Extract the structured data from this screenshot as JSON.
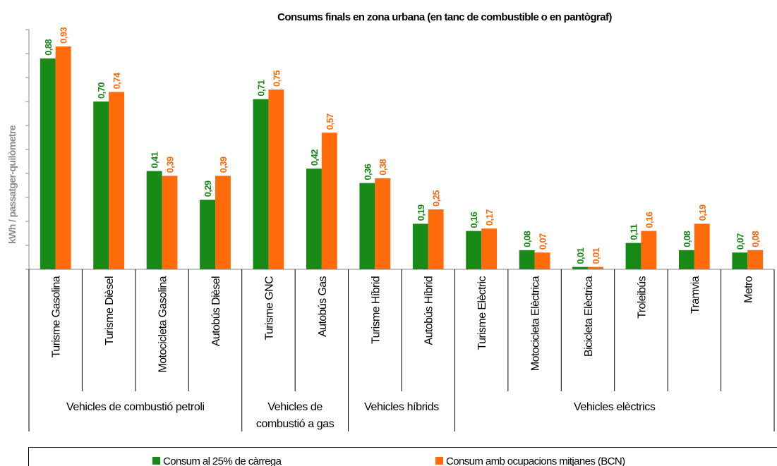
{
  "chart_data": {
    "type": "bar",
    "title": "Consums finals en zona urbana (en tanc de combustible o en pantògraf)",
    "y_label": "kWh / passatger-quilòmetre",
    "categories": [
      "Turisme Gasolina",
      "Turisme Dièsel",
      "Motocicleta Gasolina",
      "Autobús Dièsel",
      "Turisme GNC",
      "Autobús Gas",
      "Turisme Híbrid",
      "Autobús Híbrid",
      "Turisme Elèctric",
      "Motocicleta Elèctrica",
      "Bicicleta Elèctrica",
      "Troleibús",
      "Tramvia",
      "Metro"
    ],
    "groups": [
      {
        "label": "Vehicles de combustió petroli",
        "size": 4
      },
      {
        "label": "Vehicles de combustió a gas",
        "size": 2
      },
      {
        "label": "Vehicles híbrids",
        "size": 2
      },
      {
        "label": "Vehicles elèctrics",
        "size": 6
      }
    ],
    "series": [
      {
        "name": "Consum al 25% de càrrega",
        "color": "#178a17",
        "values": [
          0.88,
          0.7,
          0.41,
          0.29,
          0.71,
          0.42,
          0.36,
          0.19,
          0.16,
          0.08,
          0.01,
          0.11,
          0.08,
          0.07
        ],
        "value_labels": [
          "0,88",
          "0,70",
          "0,41",
          "0,29",
          "0,71",
          "0,42",
          "0,36",
          "0,19",
          "0,16",
          "0,08",
          "0,01",
          "0,11",
          "0,08",
          "0,07"
        ]
      },
      {
        "name": "Consum amb ocupacions mitjanes (BCN)",
        "color": "#ff6a0a",
        "values": [
          0.93,
          0.74,
          0.39,
          0.39,
          0.75,
          0.57,
          0.38,
          0.25,
          0.17,
          0.07,
          0.01,
          0.16,
          0.19,
          0.08
        ],
        "value_labels": [
          "0,93",
          "0,74",
          "0,39",
          "0,39",
          "0,75",
          "0,57",
          "0,38",
          "0,25",
          "0,17",
          "0,07",
          "0,01",
          "0,16",
          "0,19",
          "0,08"
        ]
      }
    ],
    "ylim": [
      0,
      1
    ],
    "yticks": [
      0,
      0.1,
      0.2,
      0.3,
      0.4,
      0.5,
      0.6,
      0.7,
      0.8,
      0.9,
      1
    ],
    "grid": false
  }
}
